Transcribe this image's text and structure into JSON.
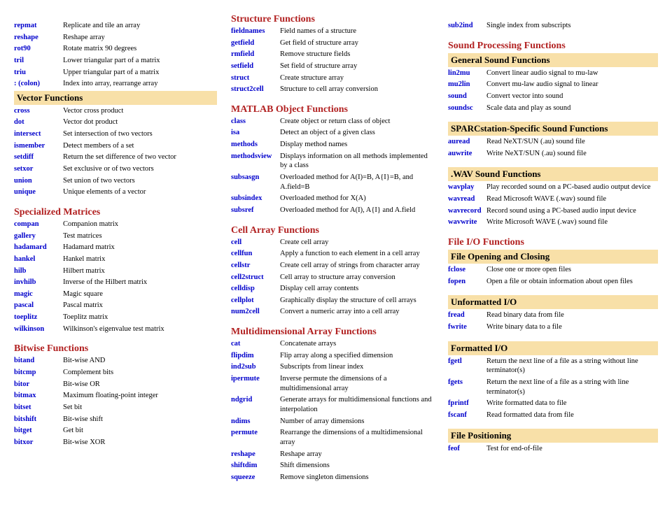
{
  "styles": {
    "link_color": "#0000cc",
    "heading_color": "#b22222",
    "subheading_bg": "#f8e0a8",
    "background": "#ffffff",
    "body_fontsize": 11,
    "heading_fontsize": 14,
    "subheading_fontsize": 13
  },
  "col1": {
    "top_entries": [
      {
        "fn": "repmat",
        "desc": "Replicate and tile an array"
      },
      {
        "fn": "reshape",
        "desc": "Reshape array"
      },
      {
        "fn": "rot90",
        "desc": "Rotate matrix 90 degrees"
      },
      {
        "fn": "tril",
        "desc": "Lower triangular part of a matrix"
      },
      {
        "fn": "triu",
        "desc": "Upper triangular part of a matrix"
      },
      {
        "fn": ": (colon)",
        "desc": "Index into array, rearrange array"
      }
    ],
    "vector_title": "Vector Functions",
    "vector_entries": [
      {
        "fn": "cross",
        "desc": "Vector cross product"
      },
      {
        "fn": "dot",
        "desc": "Vector dot product"
      },
      {
        "fn": "intersect",
        "desc": "Set intersection of two vectors"
      },
      {
        "fn": "ismember",
        "desc": "Detect members of a set"
      },
      {
        "fn": "setdiff",
        "desc": "Return the set difference of two vector"
      },
      {
        "fn": "setxor",
        "desc": "Set exclusive or of two vectors"
      },
      {
        "fn": "union",
        "desc": "Set union of two vectors"
      },
      {
        "fn": "unique",
        "desc": "Unique elements of a vector"
      }
    ],
    "spec_title": "Specialized Matrices",
    "spec_entries": [
      {
        "fn": "compan",
        "desc": "Companion matrix"
      },
      {
        "fn": "gallery",
        "desc": "Test matrices"
      },
      {
        "fn": "hadamard",
        "desc": "Hadamard matrix"
      },
      {
        "fn": "hankel",
        "desc": "Hankel matrix"
      },
      {
        "fn": "hilb",
        "desc": "Hilbert matrix"
      },
      {
        "fn": "invhilb",
        "desc": "Inverse of the Hilbert matrix"
      },
      {
        "fn": "magic",
        "desc": "Magic square"
      },
      {
        "fn": "pascal",
        "desc": "Pascal matrix"
      },
      {
        "fn": "toeplitz",
        "desc": "Toeplitz matrix"
      },
      {
        "fn": "wilkinson",
        "desc": "Wilkinson's eigenvalue test matrix"
      }
    ],
    "bitwise_title": "Bitwise Functions",
    "bitwise_entries": [
      {
        "fn": "bitand",
        "desc": "Bit-wise AND"
      },
      {
        "fn": "bitcmp",
        "desc": "Complement bits"
      },
      {
        "fn": "bitor",
        "desc": "Bit-wise OR"
      },
      {
        "fn": "bitmax",
        "desc": "Maximum floating-point integer"
      },
      {
        "fn": "bitset",
        "desc": "Set bit"
      },
      {
        "fn": "bitshift",
        "desc": "Bit-wise shift"
      },
      {
        "fn": "bitget",
        "desc": "Get bit"
      },
      {
        "fn": "bitxor",
        "desc": "Bit-wise XOR"
      }
    ]
  },
  "col2": {
    "struct_title": "Structure Functions",
    "struct_entries": [
      {
        "fn": "fieldnames",
        "desc": "Field names of a structure"
      },
      {
        "fn": "getfield",
        "desc": "Get field of structure array"
      },
      {
        "fn": "rmfield",
        "desc": "Remove structure fields"
      },
      {
        "fn": "setfield",
        "desc": "Set field of structure array"
      },
      {
        "fn": "struct",
        "desc": "Create structure array"
      },
      {
        "fn": "struct2cell",
        "desc": "Structure to cell array conversion"
      }
    ],
    "obj_title": "MATLAB Object Functions",
    "obj_entries": [
      {
        "fn": "class",
        "desc": "Create object or return class of object"
      },
      {
        "fn": "isa",
        "desc": "Detect an object of a given class"
      },
      {
        "fn": "methods",
        "desc": "Display method names"
      },
      {
        "fn": "methodsview",
        "desc": "Displays information on all methods implemented by a class"
      },
      {
        "fn": "subsasgn",
        "desc": "Overloaded method for A(I)=B, A{I}=B, and A.field=B"
      },
      {
        "fn": "subsindex",
        "desc": "Overloaded method for X(A)"
      },
      {
        "fn": "subsref",
        "desc": "Overloaded method for A(I), A{I} and A.field"
      }
    ],
    "cell_title": "Cell Array Functions",
    "cell_entries": [
      {
        "fn": "cell",
        "desc": "Create cell array"
      },
      {
        "fn": "cellfun",
        "desc": "Apply a function to each element in a cell array"
      },
      {
        "fn": "cellstr",
        "desc": "Create cell array of strings from character array"
      },
      {
        "fn": "cell2struct",
        "desc": "Cell array to structure array conversion"
      },
      {
        "fn": "celldisp",
        "desc": "Display cell array contents"
      },
      {
        "fn": "cellplot",
        "desc": "Graphically display the structure of cell arrays"
      },
      {
        "fn": "num2cell",
        "desc": "Convert a numeric array into a cell array"
      }
    ],
    "multi_title": "Multidimensional Array Functions",
    "multi_entries": [
      {
        "fn": "cat",
        "desc": "Concatenate arrays"
      },
      {
        "fn": "flipdim",
        "desc": "Flip array along a specified dimension"
      },
      {
        "fn": "ind2sub",
        "desc": "Subscripts from linear index"
      },
      {
        "fn": "ipermute",
        "desc": "Inverse permute the dimensions of a multidimensional array"
      },
      {
        "fn": "ndgrid",
        "desc": "Generate arrays for multidimensional functions and interpolation"
      },
      {
        "fn": "ndims",
        "desc": "Number of array dimensions"
      },
      {
        "fn": "permute",
        "desc": "Rearrange the dimensions of a multidimensional array"
      },
      {
        "fn": "reshape",
        "desc": "Reshape array"
      },
      {
        "fn": "shiftdim",
        "desc": "Shift dimensions"
      },
      {
        "fn": "squeeze",
        "desc": "Remove singleton dimensions"
      }
    ]
  },
  "col3": {
    "top_entries": [
      {
        "fn": "sub2ind",
        "desc": "Single index from subscripts"
      }
    ],
    "sound_title": "Sound Processing Functions",
    "general_sound_title": "General Sound Functions",
    "general_sound_entries": [
      {
        "fn": "lin2mu",
        "desc": "Convert linear audio signal to mu-law"
      },
      {
        "fn": "mu2lin",
        "desc": "Convert mu-law audio signal to linear"
      },
      {
        "fn": "sound",
        "desc": "Convert vector into sound"
      },
      {
        "fn": "soundsc",
        "desc": "Scale data and play as sound"
      }
    ],
    "sparc_title": "SPARCstation-Specific Sound Functions",
    "sparc_entries": [
      {
        "fn": "auread",
        "desc": "Read NeXT/SUN (.au) sound file"
      },
      {
        "fn": "auwrite",
        "desc": "Write NeXT/SUN (.au) sound file"
      }
    ],
    "wav_title": ".WAV Sound Functions",
    "wav_entries": [
      {
        "fn": "wavplay",
        "desc": "Play recorded sound on a PC-based audio output device"
      },
      {
        "fn": "wavread",
        "desc": "Read Microsoft WAVE (.wav) sound file"
      },
      {
        "fn": "wavrecord",
        "desc": "Record sound using a PC-based audio input device"
      },
      {
        "fn": "wavwrite",
        "desc": "Write Microsoft WAVE (.wav) sound file"
      }
    ],
    "fileio_title": "File I/O Functions",
    "open_title": "File Opening and Closing",
    "open_entries": [
      {
        "fn": "fclose",
        "desc": "Close one or more open files"
      },
      {
        "fn": "fopen",
        "desc": "Open a file or obtain information about open files"
      }
    ],
    "unformatted_title": "Unformatted I/O",
    "unformatted_entries": [
      {
        "fn": "fread",
        "desc": "Read binary data from file"
      },
      {
        "fn": "fwrite",
        "desc": "Write binary data to a file"
      }
    ],
    "formatted_title": "Formatted I/O",
    "formatted_entries": [
      {
        "fn": "fgetl",
        "desc": "Return the next line of a file as a string without line terminator(s)"
      },
      {
        "fn": "fgets",
        "desc": "Return the next line of a file as a string with line terminator(s)"
      },
      {
        "fn": "fprintf",
        "desc": "Write formatted data to file"
      },
      {
        "fn": "fscanf",
        "desc": "Read formatted data from file"
      }
    ],
    "filepos_title": "File Positioning",
    "filepos_entries": [
      {
        "fn": "feof",
        "desc": "Test for end-of-file"
      }
    ]
  }
}
